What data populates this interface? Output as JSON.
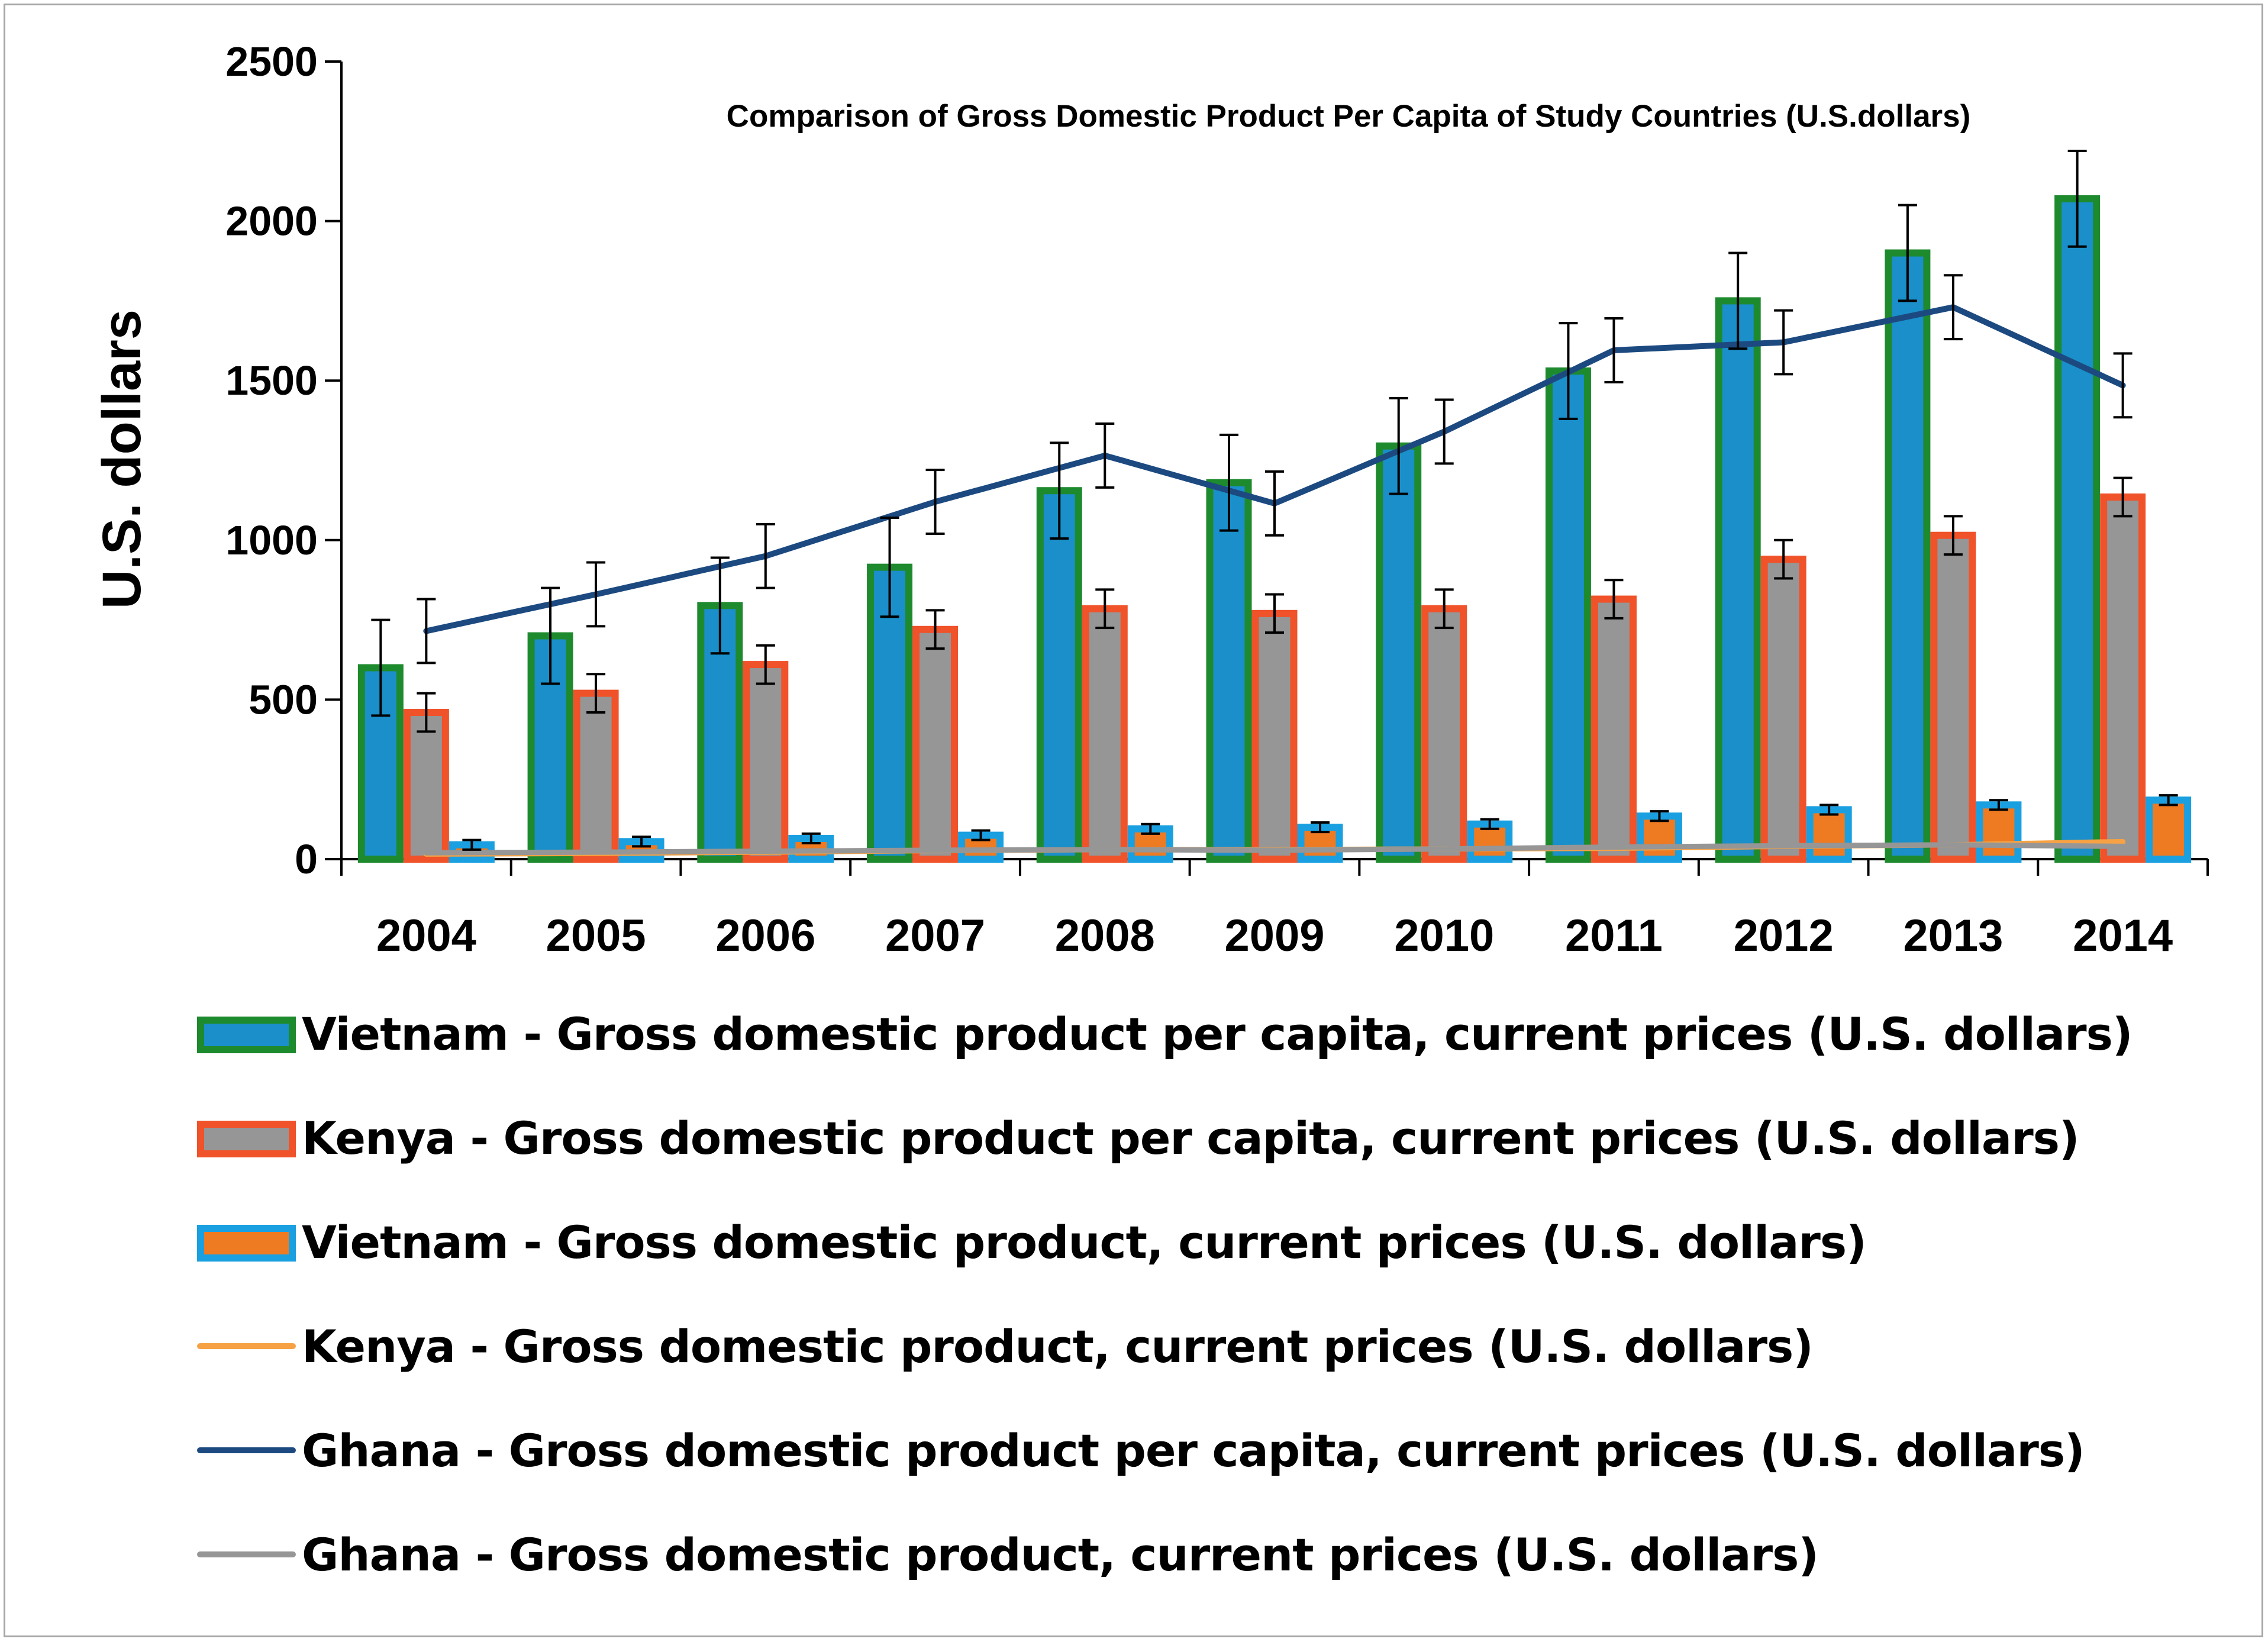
{
  "chart_data": {
    "type": "bar",
    "title": "Comparison of Gross Domestic Product Per Capita of Study Countries (U.S.dollars)",
    "xlabel": "",
    "ylabel": "U.S. dollars",
    "ylim": [
      0,
      2500
    ],
    "yticks": [
      "0",
      "500",
      "1000",
      "1500",
      "2000",
      "2500"
    ],
    "categories": [
      "2004",
      "2005",
      "2006",
      "2007",
      "2008",
      "2009",
      "2010",
      "2011",
      "2012",
      "2013",
      "2014"
    ],
    "series": [
      {
        "name": "Vietnam - Gross domestic product per capita, current prices (U.S. dollars)",
        "kind": "bar",
        "fill": "#1a8fc9",
        "stroke": "#1e8a2e",
        "values": [
          600,
          700,
          795,
          915,
          1155,
          1180,
          1295,
          1530,
          1750,
          1900,
          2070
        ],
        "errors": [
          150,
          150,
          150,
          155,
          150,
          150,
          150,
          150,
          150,
          150,
          150
        ]
      },
      {
        "name": "Kenya - Gross domestic product per capita, current prices (U.S. dollars)",
        "kind": "bar",
        "fill": "#969696",
        "stroke": "#f0522a",
        "values": [
          460,
          520,
          610,
          720,
          785,
          770,
          785,
          815,
          940,
          1015,
          1135
        ],
        "errors": [
          60,
          60,
          60,
          60,
          60,
          60,
          60,
          60,
          60,
          60,
          60
        ]
      },
      {
        "name": "Vietnam - Gross domestic product, current prices (U.S. dollars)",
        "kind": "bar",
        "fill": "#ee7a22",
        "stroke": "#1aa0e0",
        "values": [
          45,
          55,
          65,
          75,
          95,
          100,
          110,
          135,
          155,
          170,
          185
        ],
        "errors": [
          15,
          15,
          15,
          15,
          15,
          15,
          15,
          15,
          15,
          15,
          15
        ]
      },
      {
        "name": "Kenya - Gross domestic product, current prices (U.S. dollars)",
        "kind": "line",
        "stroke": "#f6a244",
        "values": [
          16,
          18,
          22,
          27,
          30,
          30,
          32,
          34,
          40,
          45,
          55
        ]
      },
      {
        "name": "Ghana - Gross domestic product per capita, current prices (U.S. dollars)",
        "kind": "line",
        "stroke": "#1c4a80",
        "values": [
          715,
          830,
          950,
          1120,
          1265,
          1115,
          1340,
          1595,
          1620,
          1730,
          1485
        ],
        "errors": [
          100,
          100,
          100,
          100,
          100,
          100,
          100,
          100,
          100,
          100,
          100
        ]
      },
      {
        "name": "Ghana - Gross domestic product, current prices (U.S. dollars)",
        "kind": "line",
        "stroke": "#969696",
        "values": [
          20,
          22,
          25,
          28,
          30,
          28,
          32,
          38,
          42,
          45,
          40
        ]
      }
    ]
  }
}
